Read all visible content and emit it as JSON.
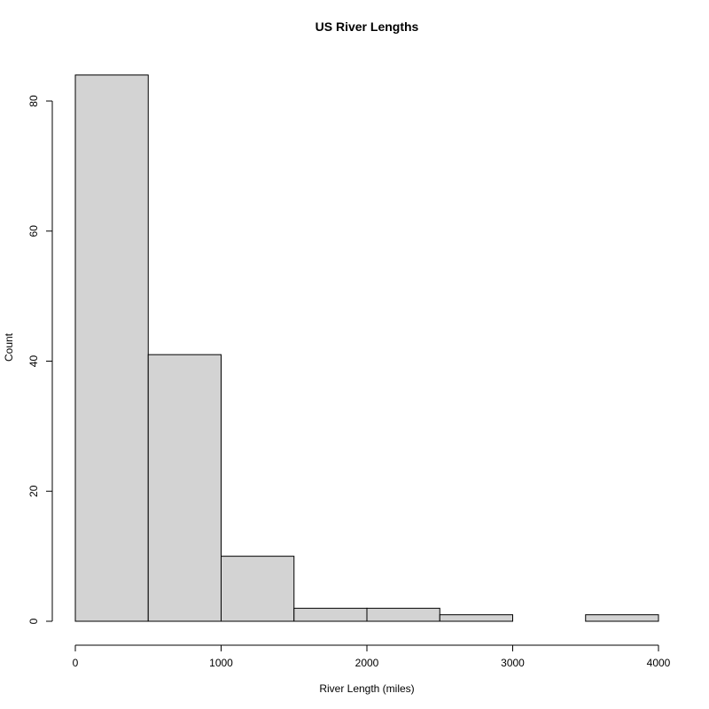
{
  "chart_data": {
    "type": "histogram",
    "title": "US River Lengths",
    "x_label": "River Length (miles)",
    "y_label": "Count",
    "bins": [
      0,
      500,
      1000,
      1500,
      2000,
      2500,
      3000,
      3500,
      4000
    ],
    "values": [
      84,
      41,
      10,
      2,
      2,
      1,
      0,
      1
    ],
    "color": "#d3d3d3",
    "xlim": [
      0,
      4000
    ],
    "xticks": [
      0,
      1000,
      2000,
      3000,
      4000
    ],
    "ylim": [
      0,
      84
    ],
    "yticks": [
      0,
      20,
      40,
      60,
      80
    ]
  }
}
